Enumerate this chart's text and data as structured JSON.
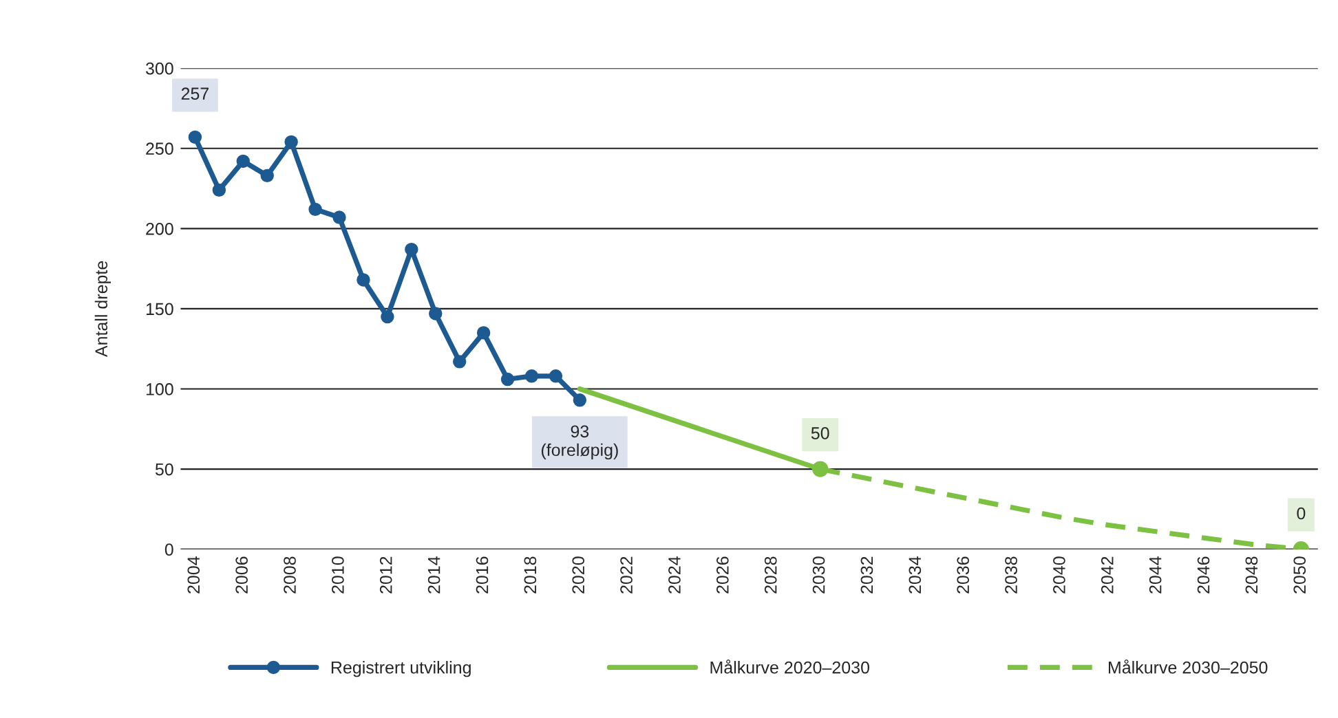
{
  "chart_data": {
    "type": "line",
    "ylabel": "Antall drepte",
    "ylim": [
      0,
      300
    ],
    "yticks": [
      0,
      50,
      100,
      150,
      200,
      250,
      300
    ],
    "xlim": [
      2003.4,
      2050.7
    ],
    "xticks": [
      2004,
      2006,
      2008,
      2010,
      2012,
      2014,
      2016,
      2018,
      2020,
      2022,
      2024,
      2026,
      2028,
      2030,
      2032,
      2034,
      2036,
      2038,
      2040,
      2042,
      2044,
      2046,
      2048,
      2050
    ],
    "grid": "y",
    "legend": "bottom",
    "series": [
      {
        "name": "Registrert utvikling",
        "color": "#1d5a92",
        "marker": "circle",
        "line_style": "solid",
        "x": [
          2004,
          2005,
          2006,
          2007,
          2008,
          2009,
          2010,
          2011,
          2012,
          2013,
          2014,
          2015,
          2016,
          2017,
          2018,
          2019,
          2020
        ],
        "values": [
          257,
          224,
          242,
          233,
          254,
          212,
          207,
          168,
          145,
          187,
          147,
          117,
          135,
          106,
          108,
          108,
          93
        ]
      },
      {
        "name": "Målkurve 2020–2030",
        "color": "#7dc142",
        "marker": "none",
        "line_style": "solid",
        "x": [
          2020,
          2030
        ],
        "values": [
          100,
          50
        ]
      },
      {
        "name": "Målkurve 2030–2050",
        "color": "#7dc142",
        "marker": "none",
        "line_style": "dashed",
        "x": [
          2030,
          2032,
          2034,
          2036,
          2038,
          2040,
          2042,
          2044,
          2046,
          2048,
          2050
        ],
        "values": [
          50,
          44,
          38,
          32,
          26,
          20,
          15,
          11,
          7,
          3,
          0
        ]
      },
      {
        "type": "scatter",
        "color": "#7dc142",
        "marker": "circle",
        "x": [
          2030,
          2050
        ],
        "values": [
          50,
          0
        ]
      }
    ],
    "annotations": [
      {
        "text": "257",
        "x": 2004,
        "y": 257
      },
      {
        "text": "93\n(foreløpig)",
        "x": 2020,
        "y": 93
      },
      {
        "text": "50",
        "x": 2030,
        "y": 50
      },
      {
        "text": "0",
        "x": 2050,
        "y": 0
      }
    ]
  }
}
